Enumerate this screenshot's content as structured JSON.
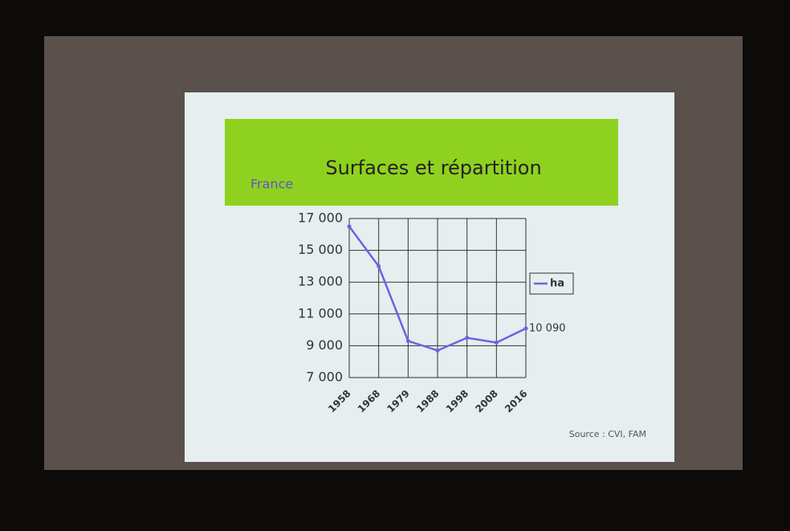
{
  "chart_data": {
    "type": "line",
    "title": "Surfaces et répartition",
    "subtitle": "France",
    "categories": [
      "1958",
      "1968",
      "1979",
      "1988",
      "1998",
      "2008",
      "2016"
    ],
    "series": [
      {
        "name": "ha",
        "color": "#6a64e0",
        "values": [
          16500,
          14000,
          9300,
          8700,
          9500,
          9200,
          10090
        ],
        "value_labels": [
          null,
          null,
          null,
          null,
          null,
          null,
          "10 090"
        ]
      }
    ],
    "ylim": [
      7000,
      17000
    ],
    "yticks": [
      {
        "value": 7000,
        "label": "7 000"
      },
      {
        "value": 9000,
        "label": "9 000"
      },
      {
        "value": 11000,
        "label": "11 000"
      },
      {
        "value": 13000,
        "label": "13 000"
      },
      {
        "value": 15000,
        "label": "15 000"
      },
      {
        "value": 17000,
        "label": "17 000"
      }
    ],
    "grid": true,
    "legend": "right",
    "source": "Source : CVI, FAM"
  }
}
